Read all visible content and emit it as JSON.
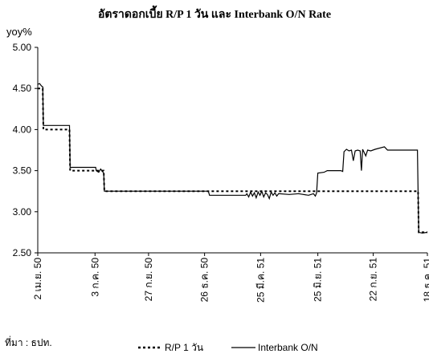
{
  "chart_data": {
    "type": "line",
    "title": "อัตราดอกเบี้ย R/P 1 วัน และ Interbank O/N Rate",
    "ylabel": "yoy%",
    "ylim": [
      2.5,
      5.0
    ],
    "yticks": [
      "2.50",
      "3.00",
      "3.50",
      "4.00",
      "4.50",
      "5.00"
    ],
    "xlim": [
      "2007-04-02",
      "2008-12-18"
    ],
    "x_ticks": [
      {
        "date": "2007-04-02",
        "label": "2 เม.ย. 50"
      },
      {
        "date": "2007-07-03",
        "label": "3 ก.ค. 50"
      },
      {
        "date": "2007-09-27",
        "label": "27 ก.ย. 50"
      },
      {
        "date": "2007-12-26",
        "label": "26 ธ.ค. 50"
      },
      {
        "date": "2008-03-25",
        "label": "25 มี.ค. 51"
      },
      {
        "date": "2008-06-25",
        "label": "25 มิ.ย. 51"
      },
      {
        "date": "2008-09-22",
        "label": "22 ก.ย. 51"
      },
      {
        "date": "2008-12-18",
        "label": "18 ธ.ค. 51"
      }
    ],
    "grid": false,
    "legend_position": "bottom",
    "series": [
      {
        "name": "R/P 1 วัน",
        "style": "dotted",
        "color": "#000000",
        "points": [
          [
            "2007-04-02",
            4.5
          ],
          [
            "2007-04-10",
            4.5
          ],
          [
            "2007-04-11",
            4.0
          ],
          [
            "2007-05-23",
            4.0
          ],
          [
            "2007-05-24",
            3.5
          ],
          [
            "2007-07-17",
            3.5
          ],
          [
            "2007-07-18",
            3.25
          ],
          [
            "2008-12-03",
            3.25
          ],
          [
            "2008-12-04",
            2.75
          ],
          [
            "2008-12-18",
            2.75
          ]
        ]
      },
      {
        "name": "Interbank O/N",
        "style": "solid",
        "color": "#000000",
        "points": [
          [
            "2007-04-02",
            4.55
          ],
          [
            "2007-04-05",
            4.56
          ],
          [
            "2007-04-08",
            4.53
          ],
          [
            "2007-04-10",
            4.52
          ],
          [
            "2007-04-11",
            4.05
          ],
          [
            "2007-05-23",
            4.05
          ],
          [
            "2007-05-24",
            3.54
          ],
          [
            "2007-07-04",
            3.54
          ],
          [
            "2007-07-05",
            3.5
          ],
          [
            "2007-07-09",
            3.48
          ],
          [
            "2007-07-12",
            3.52
          ],
          [
            "2007-07-17",
            3.47
          ],
          [
            "2007-07-18",
            3.25
          ],
          [
            "2008-01-01",
            3.25
          ],
          [
            "2008-01-03",
            3.2
          ],
          [
            "2008-03-01",
            3.2
          ],
          [
            "2008-03-03",
            3.22
          ],
          [
            "2008-03-06",
            3.18
          ],
          [
            "2008-03-09",
            3.24
          ],
          [
            "2008-03-12",
            3.19
          ],
          [
            "2008-03-15",
            3.23
          ],
          [
            "2008-03-18",
            3.17
          ],
          [
            "2008-03-21",
            3.24
          ],
          [
            "2008-03-24",
            3.2
          ],
          [
            "2008-03-27",
            3.25
          ],
          [
            "2008-03-30",
            3.18
          ],
          [
            "2008-04-02",
            3.23
          ],
          [
            "2008-04-05",
            3.21
          ],
          [
            "2008-04-08",
            3.16
          ],
          [
            "2008-04-11",
            3.24
          ],
          [
            "2008-04-14",
            3.2
          ],
          [
            "2008-04-17",
            3.23
          ],
          [
            "2008-04-20",
            3.19
          ],
          [
            "2008-04-23",
            3.22
          ],
          [
            "2008-05-10",
            3.21
          ],
          [
            "2008-05-25",
            3.22
          ],
          [
            "2008-06-10",
            3.2
          ],
          [
            "2008-06-18",
            3.22
          ],
          [
            "2008-06-21",
            3.19
          ],
          [
            "2008-06-23",
            3.23
          ],
          [
            "2008-06-25",
            3.47
          ],
          [
            "2008-07-05",
            3.48
          ],
          [
            "2008-07-10",
            3.5
          ],
          [
            "2008-08-01",
            3.5
          ],
          [
            "2008-08-04",
            3.49
          ],
          [
            "2008-08-06",
            3.73
          ],
          [
            "2008-08-10",
            3.76
          ],
          [
            "2008-08-14",
            3.74
          ],
          [
            "2008-08-18",
            3.75
          ],
          [
            "2008-08-21",
            3.62
          ],
          [
            "2008-08-24",
            3.74
          ],
          [
            "2008-08-28",
            3.75
          ],
          [
            "2008-09-01",
            3.74
          ],
          [
            "2008-09-03",
            3.5
          ],
          [
            "2008-09-05",
            3.76
          ],
          [
            "2008-09-10",
            3.68
          ],
          [
            "2008-09-13",
            3.75
          ],
          [
            "2008-09-18",
            3.74
          ],
          [
            "2008-09-25",
            3.76
          ],
          [
            "2008-10-10",
            3.79
          ],
          [
            "2008-10-15",
            3.75
          ],
          [
            "2008-12-02",
            3.75
          ],
          [
            "2008-12-04",
            2.75
          ],
          [
            "2008-12-10",
            2.74
          ],
          [
            "2008-12-18",
            2.75
          ]
        ]
      }
    ]
  },
  "source_note": "ที่มา : ธปท."
}
